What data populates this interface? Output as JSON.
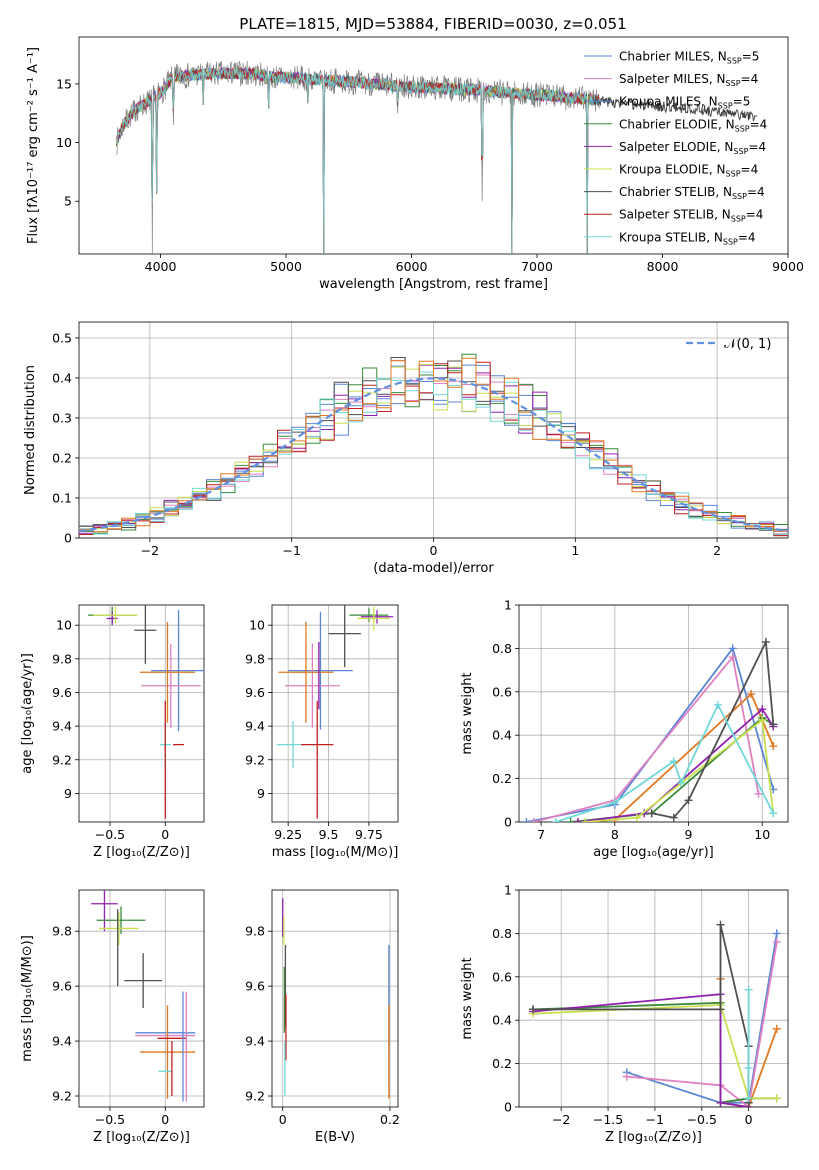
{
  "figure_title": "PLATE=1815, MJD=53884, FIBERID=0030, z=0.051",
  "colors": {
    "Chabrier MILES": "#5b86d6",
    "Salpeter MILES": "#e080c0",
    "Kroupa MILES": "#5b86d6",
    "Chabrier ELODIE": "#3a8a3a",
    "Salpeter ELODIE": "#9020b0",
    "Kroupa ELODIE": "#c8e050",
    "Chabrier STELIB": "#505050",
    "Salpeter STELIB": "#c02020",
    "Kroupa STELIB": "#70d8d8",
    "extra_orange": "#e07820",
    "normal_curve": "#6090e0"
  },
  "chart_data": [
    {
      "id": "spectrum",
      "type": "line",
      "title": "PLATE=1815, MJD=53884, FIBERID=0030, z=0.051",
      "xlabel": "wavelength [Angstrom, rest frame]",
      "ylabel": "Flux [fλ10⁻¹⁷ erg cm⁻² s⁻¹ A⁻¹]",
      "xlim": [
        3350,
        9000
      ],
      "ylim": [
        0.5,
        19
      ],
      "xticks": [
        4000,
        5000,
        6000,
        7000,
        8000,
        9000
      ],
      "yticks": [
        5,
        10,
        15
      ],
      "legend": [
        {
          "label": "Chabrier MILES, N",
          "sub": "SSP",
          "tail": "=5",
          "color": "#5b86d6"
        },
        {
          "label": "Salpeter MILES, N",
          "sub": "SSP",
          "tail": "=4",
          "color": "#e080c0"
        },
        {
          "label": "Kroupa MILES, N",
          "sub": "SSP",
          "tail": "=5",
          "color": "#5b86d6"
        },
        {
          "label": "Chabrier ELODIE, N",
          "sub": "SSP",
          "tail": "=4",
          "color": "#3a8a3a"
        },
        {
          "label": "Salpeter ELODIE, N",
          "sub": "SSP",
          "tail": "=4",
          "color": "#9020b0"
        },
        {
          "label": "Kroupa ELODIE, N",
          "sub": "SSP",
          "tail": "=4",
          "color": "#c8e050"
        },
        {
          "label": "Chabrier STELIB, N",
          "sub": "SSP",
          "tail": "=4",
          "color": "#505050"
        },
        {
          "label": "Salpeter STELIB, N",
          "sub": "SSP",
          "tail": "=4",
          "color": "#c02020"
        },
        {
          "label": "Kroupa STELIB, N",
          "sub": "SSP",
          "tail": "=4",
          "color": "#70d8d8"
        }
      ],
      "data_continuum": {
        "x": [
          3650,
          3700,
          3800,
          3900,
          4000,
          4100,
          4300,
          4500,
          4700,
          4900,
          5100,
          5300,
          5500,
          5700,
          5900,
          6100,
          6300,
          6500,
          6700,
          6900,
          7100,
          7300,
          7500,
          7700,
          7900,
          8100,
          8300,
          8500,
          8750
        ],
        "y": [
          10.0,
          11.5,
          12.8,
          13.5,
          14.2,
          15.6,
          15.8,
          15.9,
          15.9,
          15.6,
          15.5,
          15.3,
          15.2,
          15.0,
          14.8,
          14.7,
          14.6,
          14.5,
          14.3,
          14.1,
          14.0,
          13.8,
          13.6,
          13.3,
          13.1,
          13.0,
          12.8,
          12.5,
          12.2
        ]
      },
      "absorption_features": [
        {
          "x": 3934,
          "y": 0.5
        },
        {
          "x": 3969,
          "y": 4.0
        },
        {
          "x": 4102,
          "y": 11.5
        },
        {
          "x": 4340,
          "y": 13.2
        },
        {
          "x": 4861,
          "y": 12.4
        },
        {
          "x": 5175,
          "y": 13.0
        },
        {
          "x": 5300,
          "y": 0.5
        },
        {
          "x": 5890,
          "y": 12.5
        },
        {
          "x": 6563,
          "y": 3.0
        },
        {
          "x": 6800,
          "y": 0.5
        },
        {
          "x": 7400,
          "y": 0.5
        }
      ]
    },
    {
      "id": "residuals",
      "type": "histogram",
      "xlabel": "(data-model)/error",
      "ylabel": "Normed distribution",
      "xlim": [
        -2.5,
        2.5
      ],
      "ylim": [
        0,
        0.54
      ],
      "xticks": [
        -2,
        -1,
        0,
        1,
        2
      ],
      "yticks": [
        0.0,
        0.1,
        0.2,
        0.3,
        0.4,
        0.5
      ],
      "legend": [
        {
          "label": "𝒩(0, 1)",
          "color": "#6090e0",
          "style": "dashed"
        }
      ],
      "bin_width": 0.1,
      "normal_mu": 0,
      "normal_sigma": 1
    },
    {
      "id": "age-vs-Z",
      "type": "scatter",
      "xlabel": "Z [log₁₀(Z/Z⊙)]",
      "ylabel": "age  [log₁₀(age/yr)]",
      "xlim": [
        -0.78,
        0.35
      ],
      "ylim": [
        8.83,
        10.12
      ],
      "xticks": [
        -0.5,
        0.0
      ],
      "yticks": [
        9.0,
        9.2,
        9.4,
        9.6,
        9.8,
        10.0
      ],
      "points": [
        {
          "x": -0.48,
          "y": 10.06,
          "xe": 0.22,
          "ye": 0.05,
          "color": "#3a8a3a"
        },
        {
          "x": -0.48,
          "y": 10.04,
          "xe": 0.05,
          "ye": 0.04,
          "color": "#9020b0"
        },
        {
          "x": -0.45,
          "y": 10.06,
          "xe": 0.2,
          "ye": 0.05,
          "color": "#c8e050"
        },
        {
          "x": -0.18,
          "y": 9.97,
          "xe": 0.1,
          "ye": 0.2,
          "color": "#505050"
        },
        {
          "x": 0.12,
          "y": 9.73,
          "xe": 0.25,
          "ye": 0.36,
          "color": "#5b86d6"
        },
        {
          "x": 0.05,
          "y": 9.64,
          "xe": 0.27,
          "ye": 0.25,
          "color": "#e080c0"
        },
        {
          "x": 0.02,
          "y": 9.72,
          "xe": 0.25,
          "ye": 0.3,
          "color": "#e07820"
        },
        {
          "x": 0.0,
          "y": 9.29,
          "xe": 0.05,
          "ye": 0.14,
          "color": "#70d8d8"
        },
        {
          "x": 0.12,
          "y": 9.29,
          "xe": 0.05,
          "ye": 0.0,
          "color": "#c02020"
        },
        {
          "x": 0.0,
          "y": 9.2,
          "xe": 0.0,
          "ye": 0.35,
          "color": "#c02020"
        }
      ]
    },
    {
      "id": "age-vs-mass",
      "type": "scatter",
      "xlabel": "mass [log₁₀(M/M⊙)]",
      "ylabel": "",
      "xlim": [
        9.15,
        9.93
      ],
      "ylim": [
        8.83,
        10.12
      ],
      "xticks": [
        9.25,
        9.5,
        9.75
      ],
      "yticks": [
        9.0,
        9.2,
        9.4,
        9.6,
        9.8,
        10.0
      ],
      "points": [
        {
          "x": 9.75,
          "y": 10.06,
          "xe": 0.12,
          "ye": 0.04,
          "color": "#3a8a3a"
        },
        {
          "x": 9.8,
          "y": 10.05,
          "xe": 0.1,
          "ye": 0.04,
          "color": "#9020b0"
        },
        {
          "x": 9.78,
          "y": 10.04,
          "xe": 0.1,
          "ye": 0.07,
          "color": "#c8e050"
        },
        {
          "x": 9.6,
          "y": 9.95,
          "xe": 0.1,
          "ye": 0.2,
          "color": "#505050"
        },
        {
          "x": 9.45,
          "y": 9.73,
          "xe": 0.2,
          "ye": 0.35,
          "color": "#5b86d6"
        },
        {
          "x": 9.4,
          "y": 9.64,
          "xe": 0.17,
          "ye": 0.25,
          "color": "#e080c0"
        },
        {
          "x": 9.36,
          "y": 9.72,
          "xe": 0.17,
          "ye": 0.3,
          "color": "#e07820"
        },
        {
          "x": 9.28,
          "y": 9.29,
          "xe": 0.1,
          "ye": 0.14,
          "color": "#70d8d8"
        },
        {
          "x": 9.43,
          "y": 9.29,
          "xe": 0.1,
          "ye": 0.0,
          "color": "#c02020"
        },
        {
          "x": 9.43,
          "y": 9.2,
          "xe": 0.0,
          "ye": 0.35,
          "color": "#c02020"
        },
        {
          "x": 9.44,
          "y": 9.7,
          "xe": 0.0,
          "ye": 0.2,
          "color": "#9020b0"
        }
      ]
    },
    {
      "id": "massweight-vs-age",
      "type": "line",
      "xlabel": "age  [log₁₀(age/yr)]",
      "ylabel": "mass weight",
      "xlim": [
        6.7,
        10.35
      ],
      "ylim": [
        0,
        1.0
      ],
      "xticks": [
        7,
        8,
        9,
        10
      ],
      "yticks": [
        0.0,
        0.2,
        0.4,
        0.6,
        0.8,
        1.0
      ],
      "series": [
        {
          "color": "#5b86d6",
          "x": [
            6.8,
            8.0,
            9.6,
            10.15
          ],
          "y": [
            0.0,
            0.08,
            0.8,
            0.15
          ]
        },
        {
          "color": "#e080c0",
          "x": [
            6.9,
            8.0,
            9.6,
            9.95
          ],
          "y": [
            0.0,
            0.1,
            0.76,
            0.13
          ]
        },
        {
          "color": "#e07820",
          "x": [
            7.5,
            8.0,
            9.85,
            10.15
          ],
          "y": [
            0.0,
            0.01,
            0.59,
            0.35
          ]
        },
        {
          "color": "#3a8a3a",
          "x": [
            7.4,
            8.5,
            10.0,
            10.15
          ],
          "y": [
            0.0,
            0.04,
            0.48,
            0.45
          ]
        },
        {
          "color": "#9020b0",
          "x": [
            7.5,
            8.4,
            10.0,
            10.15
          ],
          "y": [
            0.0,
            0.04,
            0.52,
            0.44
          ]
        },
        {
          "color": "#c8e050",
          "x": [
            7.6,
            8.3,
            10.0,
            10.15
          ],
          "y": [
            0.0,
            0.02,
            0.47,
            0.04
          ]
        },
        {
          "color": "#505050",
          "x": [
            8.5,
            8.8,
            9.0,
            10.05,
            10.15
          ],
          "y": [
            0.04,
            0.02,
            0.1,
            0.83,
            0.45
          ]
        },
        {
          "color": "#70d8d8",
          "x": [
            7.2,
            8.0,
            8.8,
            8.9,
            9.4,
            10.15
          ],
          "y": [
            0.0,
            0.09,
            0.28,
            0.18,
            0.54,
            0.04
          ]
        }
      ]
    },
    {
      "id": "mass-vs-Z",
      "type": "scatter",
      "xlabel": "Z [log₁₀(Z/Z⊙)]",
      "ylabel": "mass [log₁₀(M/M⊙)]",
      "xlim": [
        -0.78,
        0.35
      ],
      "ylim": [
        9.16,
        9.95
      ],
      "xticks": [
        -0.5,
        0.0
      ],
      "yticks": [
        9.2,
        9.4,
        9.6,
        9.8
      ],
      "points": [
        {
          "x": -0.55,
          "y": 9.9,
          "xe": 0.12,
          "ye": 0.1,
          "color": "#9020b0"
        },
        {
          "x": -0.4,
          "y": 9.84,
          "xe": 0.22,
          "ye": 0.05,
          "color": "#3a8a3a"
        },
        {
          "x": -0.42,
          "y": 9.81,
          "xe": 0.18,
          "ye": 0.06,
          "color": "#c8e050"
        },
        {
          "x": -0.43,
          "y": 9.74,
          "xe": 0.0,
          "ye": 0.14,
          "color": "#505050"
        },
        {
          "x": -0.2,
          "y": 9.62,
          "xe": 0.17,
          "ye": 0.1,
          "color": "#505050"
        },
        {
          "x": 0.0,
          "y": 9.43,
          "xe": 0.27,
          "ye": 0.0,
          "color": "#5b86d6"
        },
        {
          "x": 0.0,
          "y": 9.42,
          "xe": 0.27,
          "ye": 0.0,
          "color": "#e080c0"
        },
        {
          "x": 0.02,
          "y": 9.36,
          "xe": 0.25,
          "ye": 0.17,
          "color": "#e07820"
        },
        {
          "x": 0.06,
          "y": 9.41,
          "xe": 0.13,
          "ye": 0.0,
          "color": "#c02020"
        },
        {
          "x": 0.16,
          "y": 9.38,
          "xe": 0.0,
          "ye": 0.2,
          "color": "#5b86d6"
        },
        {
          "x": 0.19,
          "y": 9.38,
          "xe": 0.0,
          "ye": 0.2,
          "color": "#e080c0"
        },
        {
          "x": 0.0,
          "y": 9.29,
          "xe": 0.06,
          "ye": 0.0,
          "color": "#70d8d8"
        },
        {
          "x": 0.06,
          "y": 9.3,
          "xe": 0.0,
          "ye": 0.1,
          "color": "#c02020"
        }
      ]
    },
    {
      "id": "mass-vs-EBV",
      "type": "scatter",
      "xlabel": "E(B-V)",
      "ylabel": "",
      "xlim": [
        -0.02,
        0.215
      ],
      "ylim": [
        9.16,
        9.95
      ],
      "xticks": [
        0.0,
        0.2
      ],
      "yticks": [
        9.2,
        9.4,
        9.6,
        9.8
      ],
      "points": [
        {
          "x": 0.0,
          "y": 9.85,
          "xe": 0.0,
          "ye": 0.07,
          "color": "#9020b0"
        },
        {
          "x": 0.002,
          "y": 9.8,
          "xe": 0.0,
          "ye": 0.05,
          "color": "#c8e050"
        },
        {
          "x": 0.005,
          "y": 9.6,
          "xe": 0.0,
          "ye": 0.15,
          "color": "#505050"
        },
        {
          "x": 0.003,
          "y": 9.55,
          "xe": 0.0,
          "ye": 0.12,
          "color": "#3a8a3a"
        },
        {
          "x": 0.006,
          "y": 9.45,
          "xe": 0.0,
          "ye": 0.12,
          "color": "#c02020"
        },
        {
          "x": 0.004,
          "y": 9.3,
          "xe": 0.0,
          "ye": 0.1,
          "color": "#70d8d8"
        },
        {
          "x": 0.198,
          "y": 9.55,
          "xe": 0.0,
          "ye": 0.2,
          "color": "#5b86d6"
        },
        {
          "x": 0.198,
          "y": 9.36,
          "xe": 0.0,
          "ye": 0.17,
          "color": "#e07820"
        }
      ]
    },
    {
      "id": "massweight-vs-Z",
      "type": "line",
      "xlabel": "Z [log₁₀(Z/Z⊙)]",
      "ylabel": "mass weight",
      "xlim": [
        -2.45,
        0.42
      ],
      "ylim": [
        0,
        1.0
      ],
      "xticks": [
        -2.0,
        -1.5,
        -1.0,
        -0.5,
        0.0
      ],
      "yticks": [
        0.0,
        0.2,
        0.4,
        0.6,
        0.8,
        1.0
      ],
      "series": [
        {
          "color": "#5b86d6",
          "x": [
            -1.3,
            -0.3,
            0.0,
            0.3
          ],
          "y": [
            0.16,
            0.02,
            0.02,
            0.8
          ]
        },
        {
          "color": "#e080c0",
          "x": [
            -1.3,
            -0.3,
            0.0,
            0.3
          ],
          "y": [
            0.14,
            0.1,
            0.0,
            0.76
          ]
        },
        {
          "color": "#e07820",
          "x": [
            -0.3,
            -0.3,
            0.0,
            0.3
          ],
          "y": [
            0.59,
            0.02,
            0.0,
            0.36
          ]
        },
        {
          "color": "#3a8a3a",
          "x": [
            -2.3,
            -0.3,
            -0.3,
            0.0,
            0.3
          ],
          "y": [
            0.45,
            0.48,
            0.02,
            0.04,
            0.04
          ]
        },
        {
          "color": "#9020b0",
          "x": [
            -2.3,
            -0.3,
            -0.3,
            0.0
          ],
          "y": [
            0.44,
            0.52,
            0.02,
            0.0
          ]
        },
        {
          "color": "#c8e050",
          "x": [
            -2.3,
            -0.3,
            0.0,
            0.3
          ],
          "y": [
            0.43,
            0.47,
            0.04,
            0.04
          ]
        },
        {
          "color": "#505050",
          "x": [
            -2.3,
            -0.3,
            -0.3,
            0.0,
            0.0
          ],
          "y": [
            0.45,
            0.45,
            0.84,
            0.28,
            0.02
          ]
        },
        {
          "color": "#70d8d8",
          "x": [
            0.0,
            0.0,
            0.0
          ],
          "y": [
            0.54,
            0.18,
            0.04
          ]
        }
      ]
    }
  ]
}
